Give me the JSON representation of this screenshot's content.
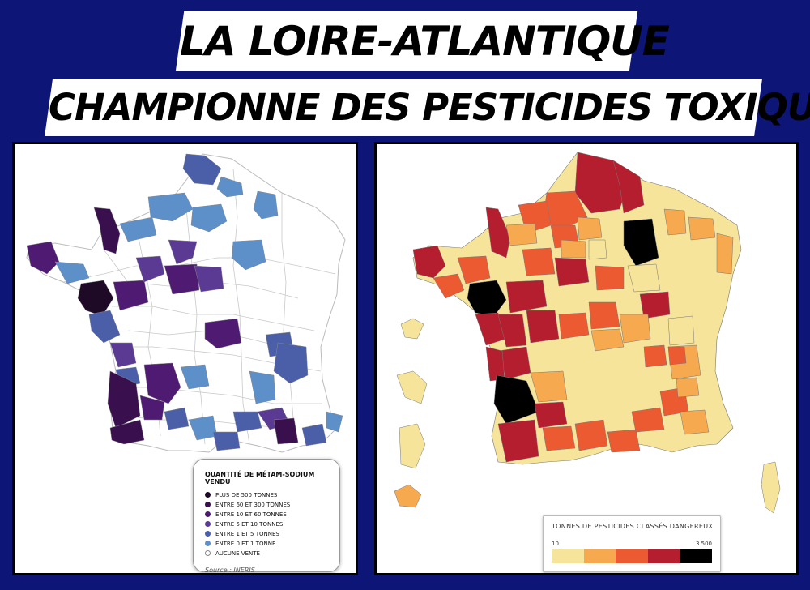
{
  "headline": {
    "line1": "LA LOIRE-ATLANTIQUE",
    "line2": "CHAMPIONNE DES PESTICIDES TOXIQUES !"
  },
  "left_map": {
    "legend_title": "QUANTITÉ DE MÉTAM-SODIUM VENDU",
    "legend_items": [
      {
        "label": "PLUS DE 500 TONNES",
        "color": "#1e0a26"
      },
      {
        "label": "ENTRE 60 ET 300 TONNES",
        "color": "#3a0f4e"
      },
      {
        "label": "ENTRE 10 ET 60 TONNES",
        "color": "#4f1a72"
      },
      {
        "label": "ENTRE 5 ET 10 TONNES",
        "color": "#5a3a92"
      },
      {
        "label": "ENTRE 1 ET 5 TONNES",
        "color": "#4a5fa8"
      },
      {
        "label": "ENTRE 0 ET 1 TONNE",
        "color": "#5d8fc9"
      },
      {
        "label": "AUCUNE VENTE",
        "color": "#ffffff"
      }
    ],
    "source": "Source : INERIS"
  },
  "right_map": {
    "legend_title": "TONNES DE PESTICIDES CLASSÉS DANGEREUX",
    "range_min": "10",
    "range_max": "3 500",
    "scale_colors": [
      "#f6e49a",
      "#f6a94f",
      "#ec5a32",
      "#b51e2e",
      "#000000"
    ]
  },
  "colors": {
    "background": "#0d1577"
  }
}
